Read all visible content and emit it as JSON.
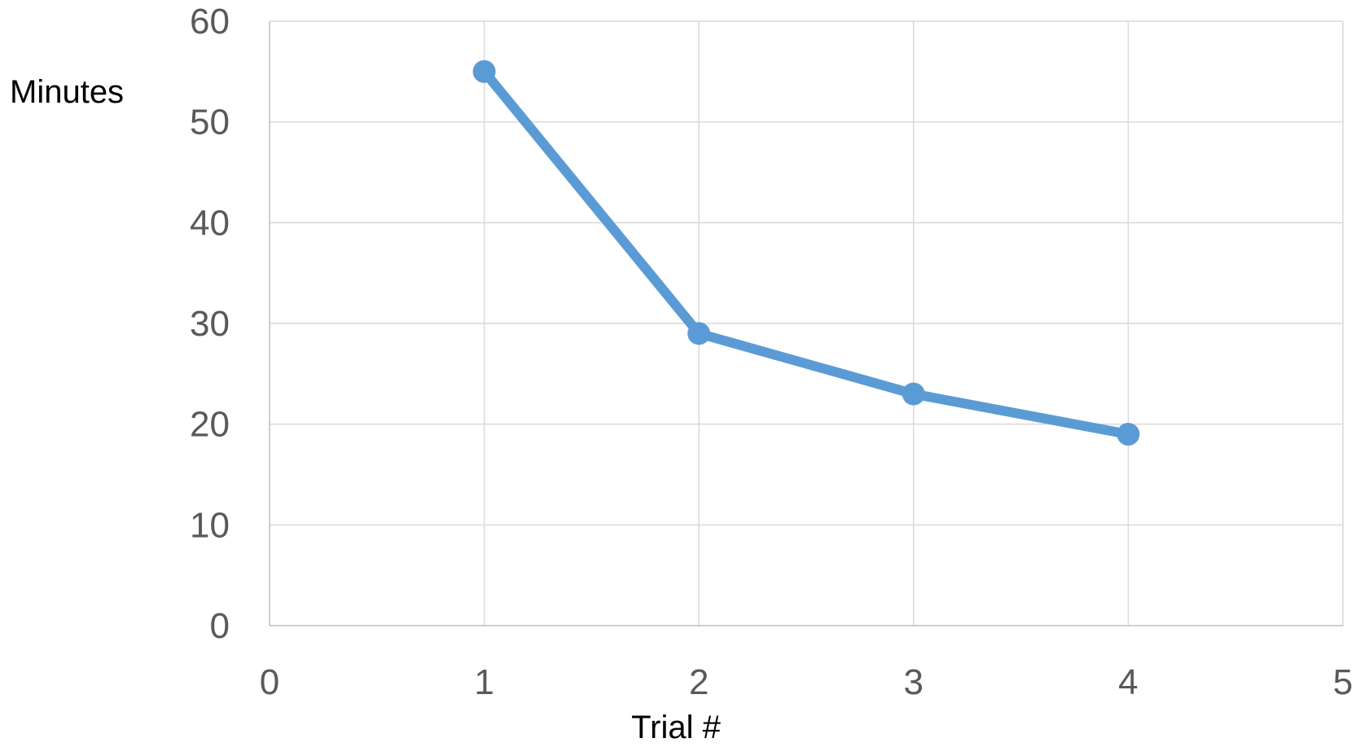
{
  "chart_data": {
    "type": "scatter",
    "xlabel": "Trial #",
    "ylabel": "Minutes",
    "xlim": [
      0,
      5
    ],
    "ylim": [
      0,
      60
    ],
    "xticks": [
      0,
      1,
      2,
      3,
      4,
      5
    ],
    "yticks": [
      0,
      10,
      20,
      30,
      40,
      50,
      60
    ],
    "grid": true,
    "legend": "none",
    "series": [
      {
        "x": [
          1,
          2,
          3,
          4
        ],
        "y": [
          55,
          29,
          23,
          19
        ],
        "color": "#5b9bd5",
        "style": "line-with-markers"
      }
    ]
  }
}
